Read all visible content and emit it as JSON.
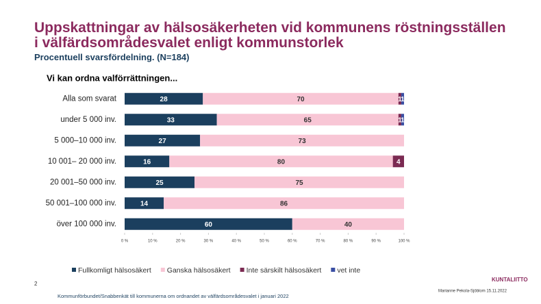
{
  "chart_data": {
    "type": "stacked-barh",
    "title": "Uppskattningar av hälsosäkerheten vid kommunens röstningsställen i välfärdsområdesvalet enligt kommunstorlek",
    "subtitle": "Procentuell svarsfördelning. (N=184)",
    "heading": "Vi kan ordna valförrättningen...",
    "categories": [
      "Alla som svarat",
      "under 5 000 inv.",
      "5 000–10 000 inv.",
      "10 001– 20 000 inv.",
      "20 001–50 000 inv.",
      "50 001–100 000 inv.",
      "över 100 000 inv."
    ],
    "series": [
      {
        "name": "Fullkomligt hälsosäkert",
        "color": "#1b3f5e",
        "values": [
          28,
          33,
          27,
          16,
          25,
          14,
          60
        ]
      },
      {
        "name": "Ganska hälsosäkert",
        "color": "#f8c6d5",
        "values": [
          70,
          65,
          73,
          80,
          75,
          86,
          40
        ]
      },
      {
        "name": "Inte särskilt hälsosäkert",
        "color": "#7b2a52",
        "values": [
          1,
          1,
          null,
          4,
          null,
          null,
          null
        ]
      },
      {
        "name": "vet inte",
        "color": "#3a4fa3",
        "values": [
          1,
          1,
          null,
          null,
          null,
          null,
          null
        ]
      }
    ],
    "xlim": [
      0,
      100
    ],
    "xticks": [
      {
        "value": 0,
        "label": "0 %"
      },
      {
        "value": 10,
        "label": "10 %"
      },
      {
        "value": 20,
        "label": "20 %"
      },
      {
        "value": 30,
        "label": "30 %"
      },
      {
        "value": 40,
        "label": "40 %"
      },
      {
        "value": 50,
        "label": "50 %"
      },
      {
        "value": 60,
        "label": "60 %"
      },
      {
        "value": 70,
        "label": "70 %"
      },
      {
        "value": 80,
        "label": "80 %"
      },
      {
        "value": 90,
        "label": "90 %"
      },
      {
        "value": 100,
        "label": "100 %"
      }
    ],
    "legend": "bottom"
  },
  "footer": {
    "page": "2",
    "source": "Kommunförbundet/Snabbenkät till kommunerna  om ordnandet av välfärdsområdesvalet i januari 2022",
    "author": "Marianne Pekola-Sjöblom  15.11.2022",
    "logo": "KUNTALIITTO"
  }
}
